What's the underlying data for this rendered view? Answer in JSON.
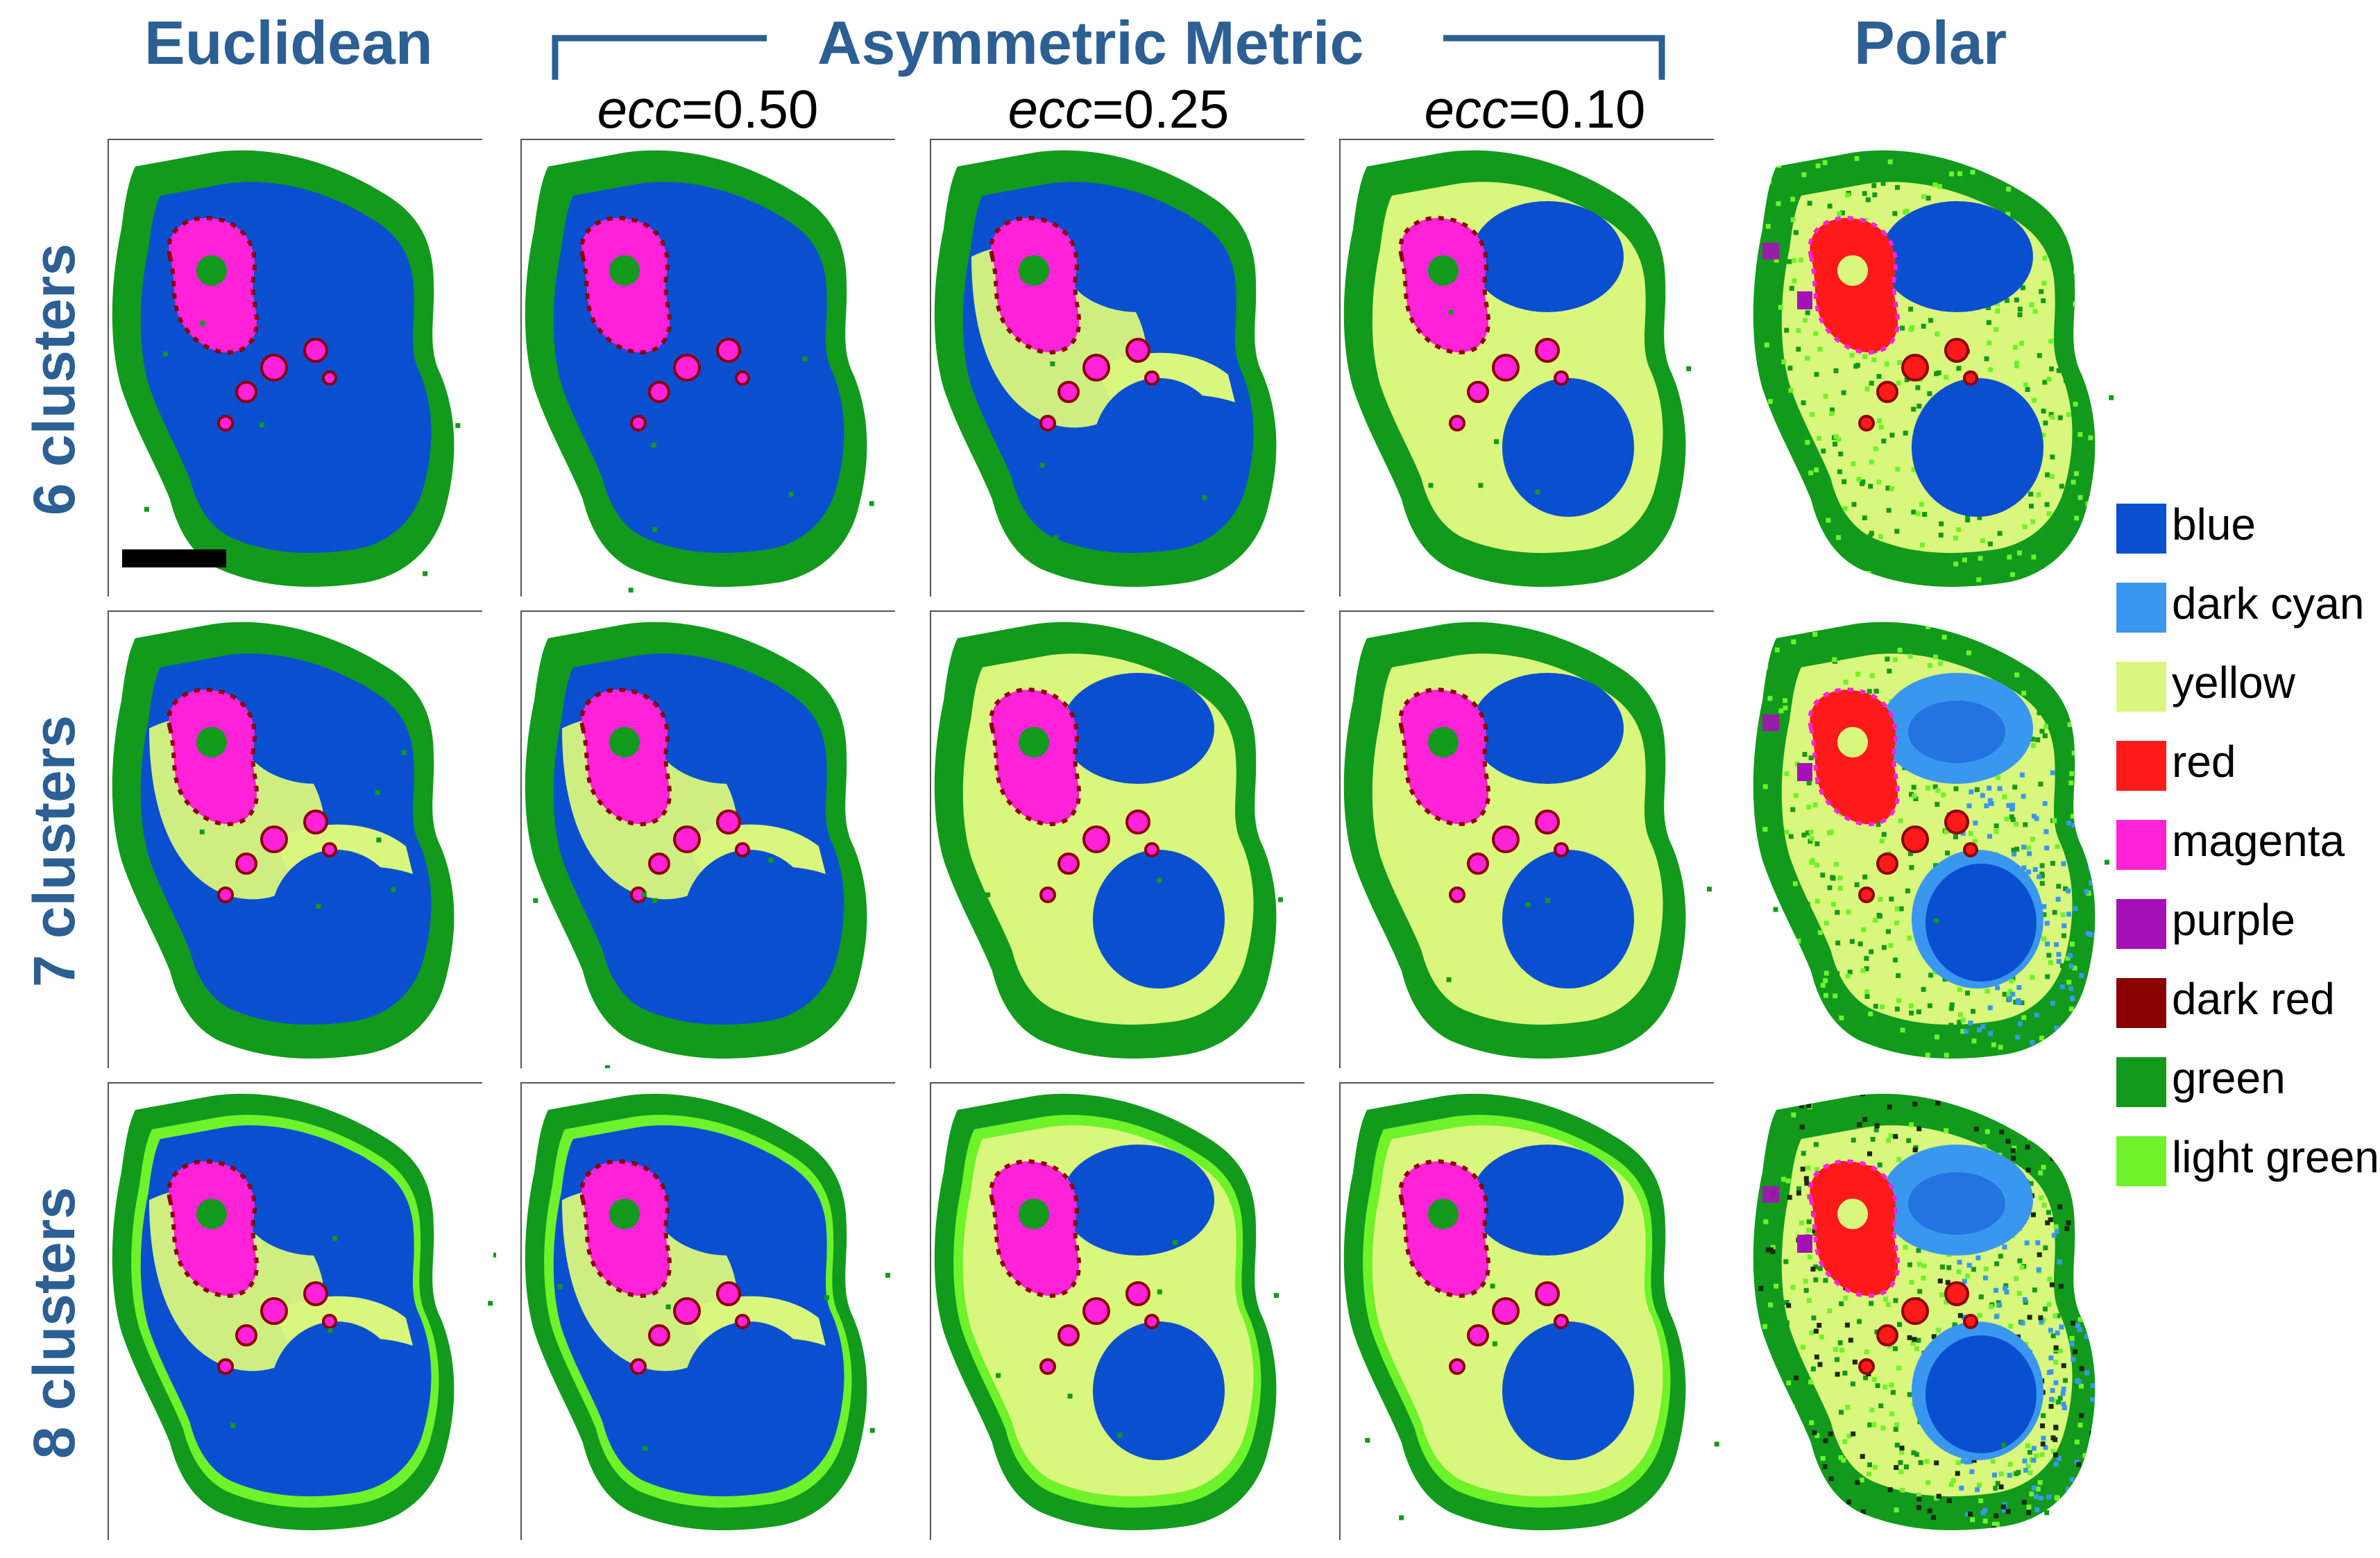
{
  "headers": {
    "euclidean": "Euclidean",
    "asymmetric": "Asymmetric Metric",
    "polar": "Polar"
  },
  "ecc_labels": [
    {
      "prefix": "ecc",
      "value": "=0.50"
    },
    {
      "prefix": "ecc",
      "value": "=0.25"
    },
    {
      "prefix": "ecc",
      "value": "=0.10"
    }
  ],
  "rows": [
    {
      "label": "6 clusters"
    },
    {
      "label": "7 clusters"
    },
    {
      "label": "8 clusters"
    }
  ],
  "legend": [
    {
      "label": "blue",
      "color": "#0b4fd1"
    },
    {
      "label": "dark cyan",
      "color": "#3a97f0"
    },
    {
      "label": "yellow",
      "color": "#d9f77c"
    },
    {
      "label": "red",
      "color": "#ff1a1a"
    },
    {
      "label": "magenta",
      "color": "#ff22d8"
    },
    {
      "label": "purple",
      "color": "#a511b8"
    },
    {
      "label": "dark red",
      "color": "#8b0000"
    },
    {
      "label": "green",
      "color": "#119a1c"
    },
    {
      "label": "light green",
      "color": "#6ef22a"
    }
  ],
  "colors": {
    "header": "#2c5f93",
    "blue": "#0b4fd1",
    "dark_cyan": "#3a97f0",
    "yellow": "#d9f77c",
    "red": "#ff1a1a",
    "magenta": "#ff22d8",
    "purple": "#a511b8",
    "dark_red": "#8b0000",
    "green": "#119a1c",
    "light_green": "#6ef22a"
  }
}
